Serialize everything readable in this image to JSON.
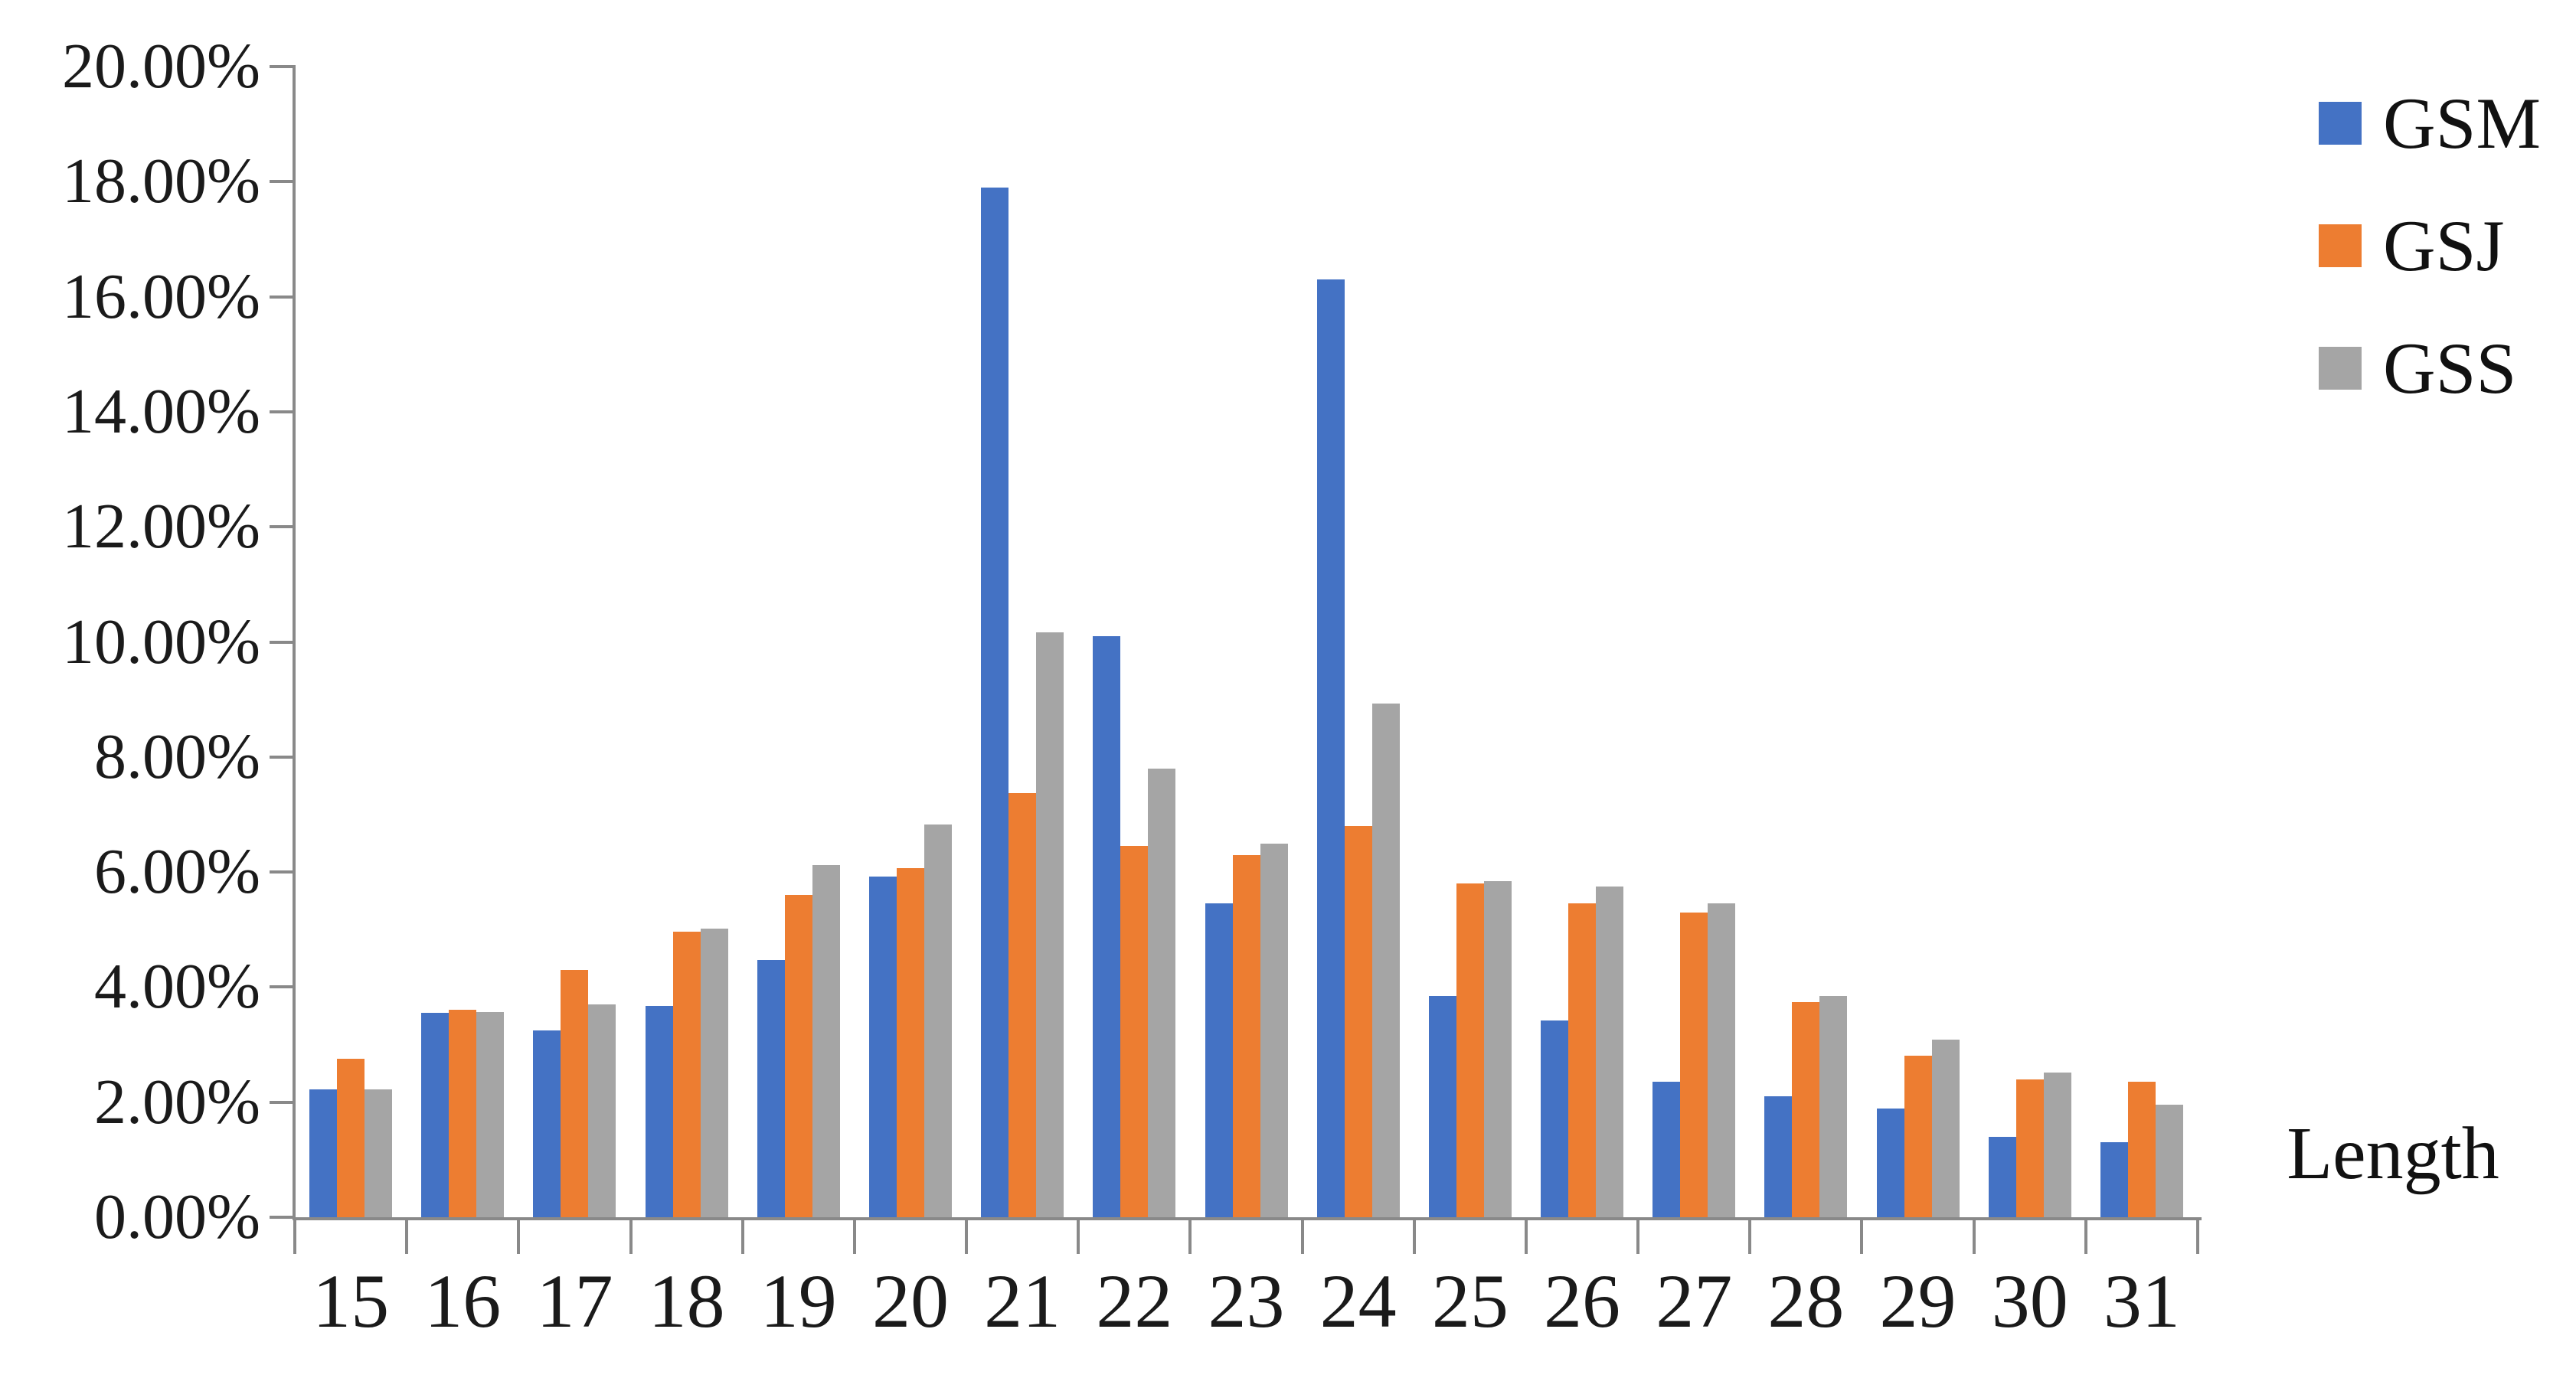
{
  "figure": {
    "background": "#ffffff",
    "axis_color": "#898989",
    "text_color": "#1a1a1a"
  },
  "chart_data": {
    "type": "bar",
    "title": "",
    "xlabel": "Length",
    "ylabel": "",
    "ylim": [
      0,
      20
    ],
    "y_tick_step": 2,
    "y_tick_labels": [
      "0.00%",
      "2.00%",
      "4.00%",
      "6.00%",
      "8.00%",
      "10.00%",
      "12.00%",
      "14.00%",
      "16.00%",
      "18.00%",
      "20.00%"
    ],
    "grid": false,
    "legend_position": "top-right",
    "categories": [
      "15",
      "16",
      "17",
      "18",
      "19",
      "20",
      "21",
      "22",
      "23",
      "24",
      "25",
      "26",
      "27",
      "28",
      "29",
      "30",
      "31"
    ],
    "series": [
      {
        "name": "GSM",
        "color": "#4472C4",
        "values": [
          2.22,
          3.55,
          3.25,
          3.67,
          4.47,
          5.92,
          17.9,
          10.1,
          5.45,
          16.3,
          3.85,
          3.42,
          2.36,
          2.1,
          1.89,
          1.4,
          1.3
        ]
      },
      {
        "name": "GSJ",
        "color": "#ED7D31",
        "values": [
          2.75,
          3.6,
          4.3,
          4.97,
          5.6,
          6.07,
          7.37,
          6.45,
          6.3,
          6.8,
          5.8,
          5.45,
          5.3,
          3.74,
          2.81,
          2.4,
          2.35
        ]
      },
      {
        "name": "GSS",
        "color": "#A5A5A5",
        "values": [
          2.22,
          3.57,
          3.7,
          5.02,
          6.12,
          6.83,
          10.17,
          7.8,
          6.5,
          8.93,
          5.84,
          5.75,
          5.45,
          3.85,
          3.09,
          2.52,
          1.95
        ]
      }
    ]
  }
}
